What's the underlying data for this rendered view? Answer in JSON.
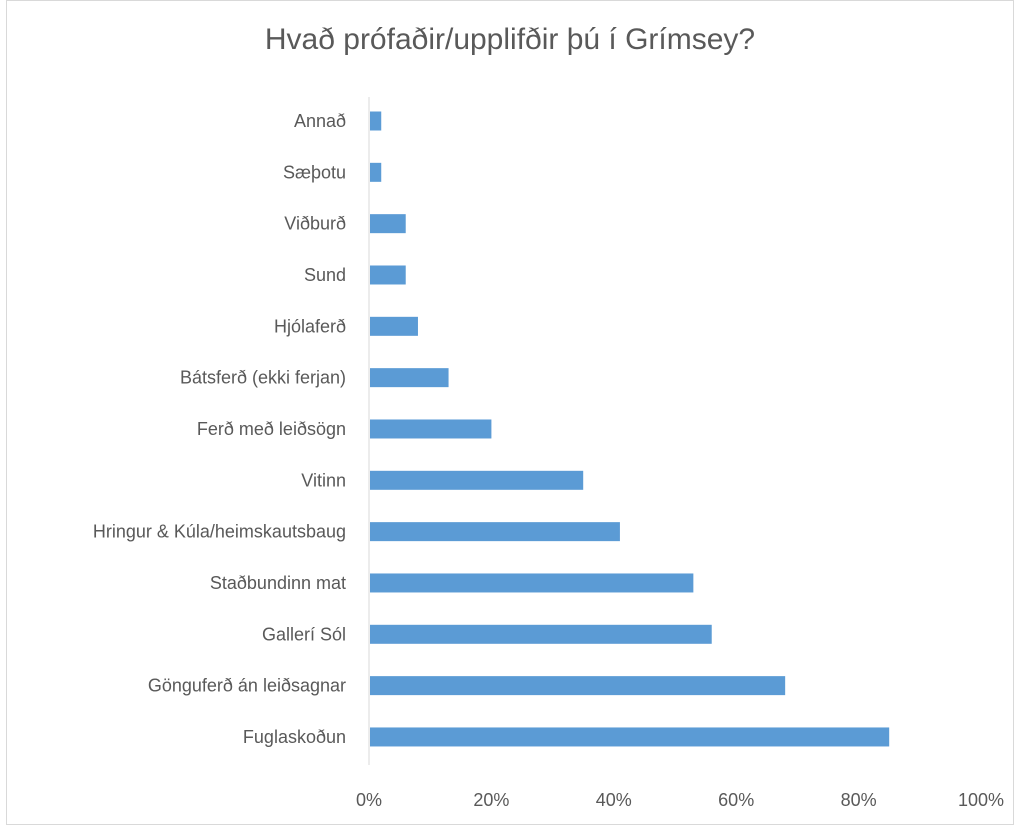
{
  "chart_data": {
    "type": "bar",
    "orientation": "horizontal",
    "title": "Hvað prófaðir/upplifðir þú í Grímsey?",
    "categories": [
      "Annað",
      "Sæþotu",
      "Viðburð",
      "Sund",
      "Hjólaferð",
      "Bátsferð (ekki ferjan)",
      "Ferð með leiðsögn",
      "Vitinn",
      "Hringur & Kúla/heimskautsbaug",
      "Staðbundinn mat",
      "Gallerí Sól",
      "Gönguferð án leiðsagnar",
      "Fuglaskoðun"
    ],
    "values": [
      0.02,
      0.02,
      0.06,
      0.06,
      0.08,
      0.13,
      0.2,
      0.35,
      0.41,
      0.53,
      0.56,
      0.68,
      0.85
    ],
    "xlim": [
      0,
      1
    ],
    "xticks": [
      "0%",
      "20%",
      "40%",
      "60%",
      "80%",
      "100%"
    ],
    "xlabel": "",
    "ylabel": "",
    "grid": false,
    "legend": "none",
    "bar_color": "#5b9bd5",
    "axis_color": "#d9d9d9",
    "text_color": "#595959"
  }
}
